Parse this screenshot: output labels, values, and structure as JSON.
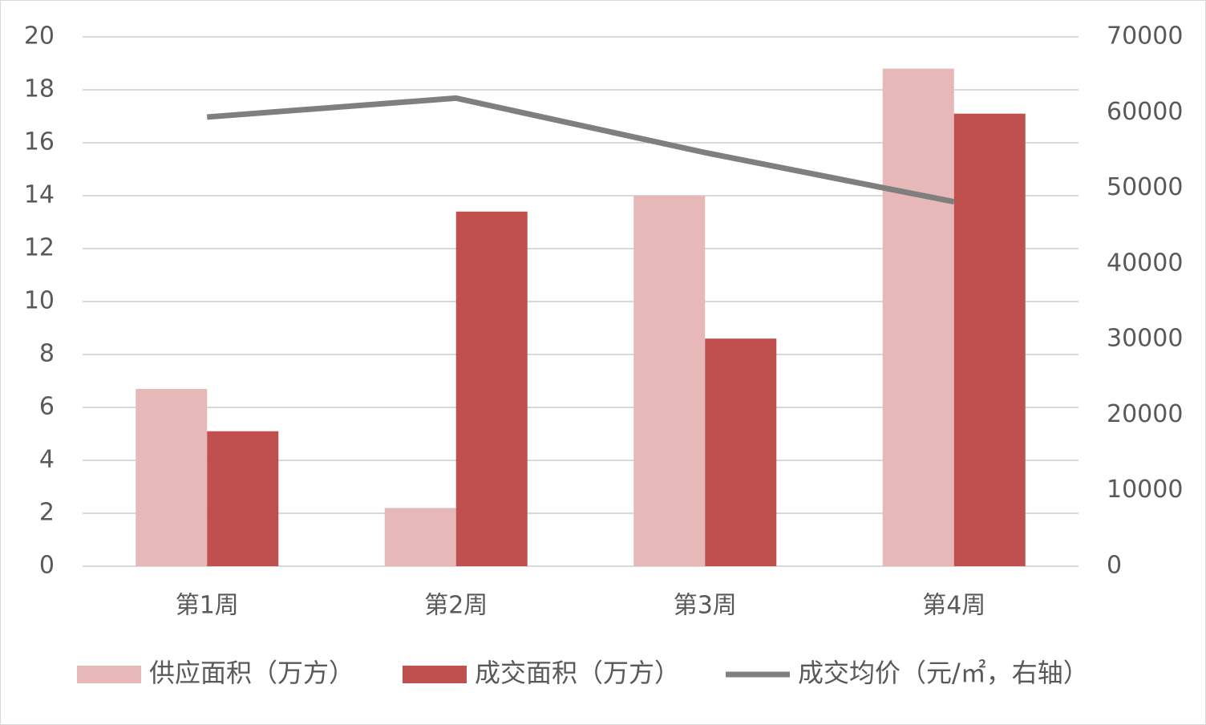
{
  "chart_data": {
    "type": "bar_line",
    "categories": [
      "第1周",
      "第2周",
      "第3周",
      "第4周"
    ],
    "series": [
      {
        "name": "供应面积（万方）",
        "color": "#e6b8b7",
        "type": "bar",
        "values": [
          6.7,
          2.2,
          14.0,
          18.8
        ]
      },
      {
        "name": "成交面积（万方）",
        "color": "#c0504d",
        "type": "bar",
        "values": [
          5.1,
          13.4,
          8.6,
          17.1
        ]
      },
      {
        "name": "成交均价（元/㎡，右轴）",
        "color": "#7f7f7f",
        "type": "line",
        "axis": "y2",
        "values": [
          59400,
          61900,
          54700,
          48200
        ]
      }
    ],
    "ylim": [
      0,
      20
    ],
    "yticks": [
      0,
      2,
      4,
      6,
      8,
      10,
      12,
      14,
      16,
      18,
      20
    ],
    "y2lim": [
      0,
      70000
    ],
    "y2ticks": [
      0,
      10000,
      20000,
      30000,
      40000,
      50000,
      60000,
      70000
    ],
    "grid": true,
    "legend": "bottom"
  }
}
